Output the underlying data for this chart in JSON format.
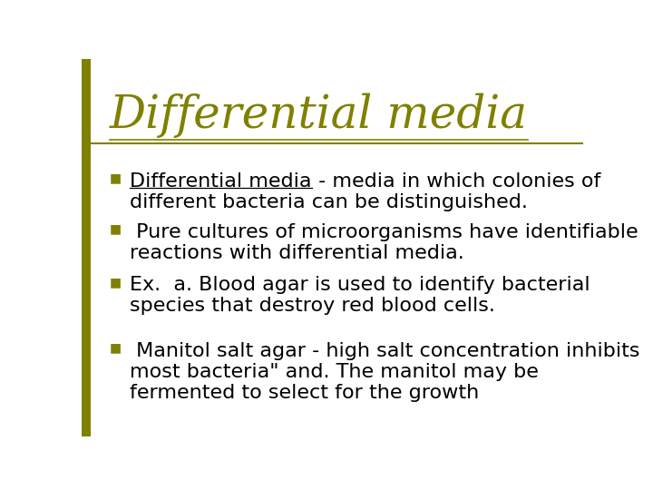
{
  "title": "Differential media",
  "title_color": "#808000",
  "title_fontsize": 36,
  "title_font": "DejaVu Serif",
  "separator_color": "#808000",
  "background_color": "#ffffff",
  "bullet_color": "#808000",
  "left_bar_color": "#808000",
  "body_fontsize": 16,
  "body_color": "#000000",
  "body_font": "DejaVu Sans",
  "bullets": [
    {
      "underline_first": "Differential media",
      "rest": " - media in which colonies of\ndifferent bacteria can be distinguished."
    },
    {
      "underline_first": null,
      "rest": " Pure cultures of microorganisms have identifiable\nreactions with differential media."
    },
    {
      "underline_first": null,
      "rest": "Ex.  a. Blood agar is used to identify bacterial\nspecies that destroy red blood cells."
    },
    {
      "underline_first": null,
      "rest": " Manitol salt agar - high salt concentration inhibits\nmost bacteria\" and. The manitol may be\nfermented to select for the growth"
    }
  ]
}
